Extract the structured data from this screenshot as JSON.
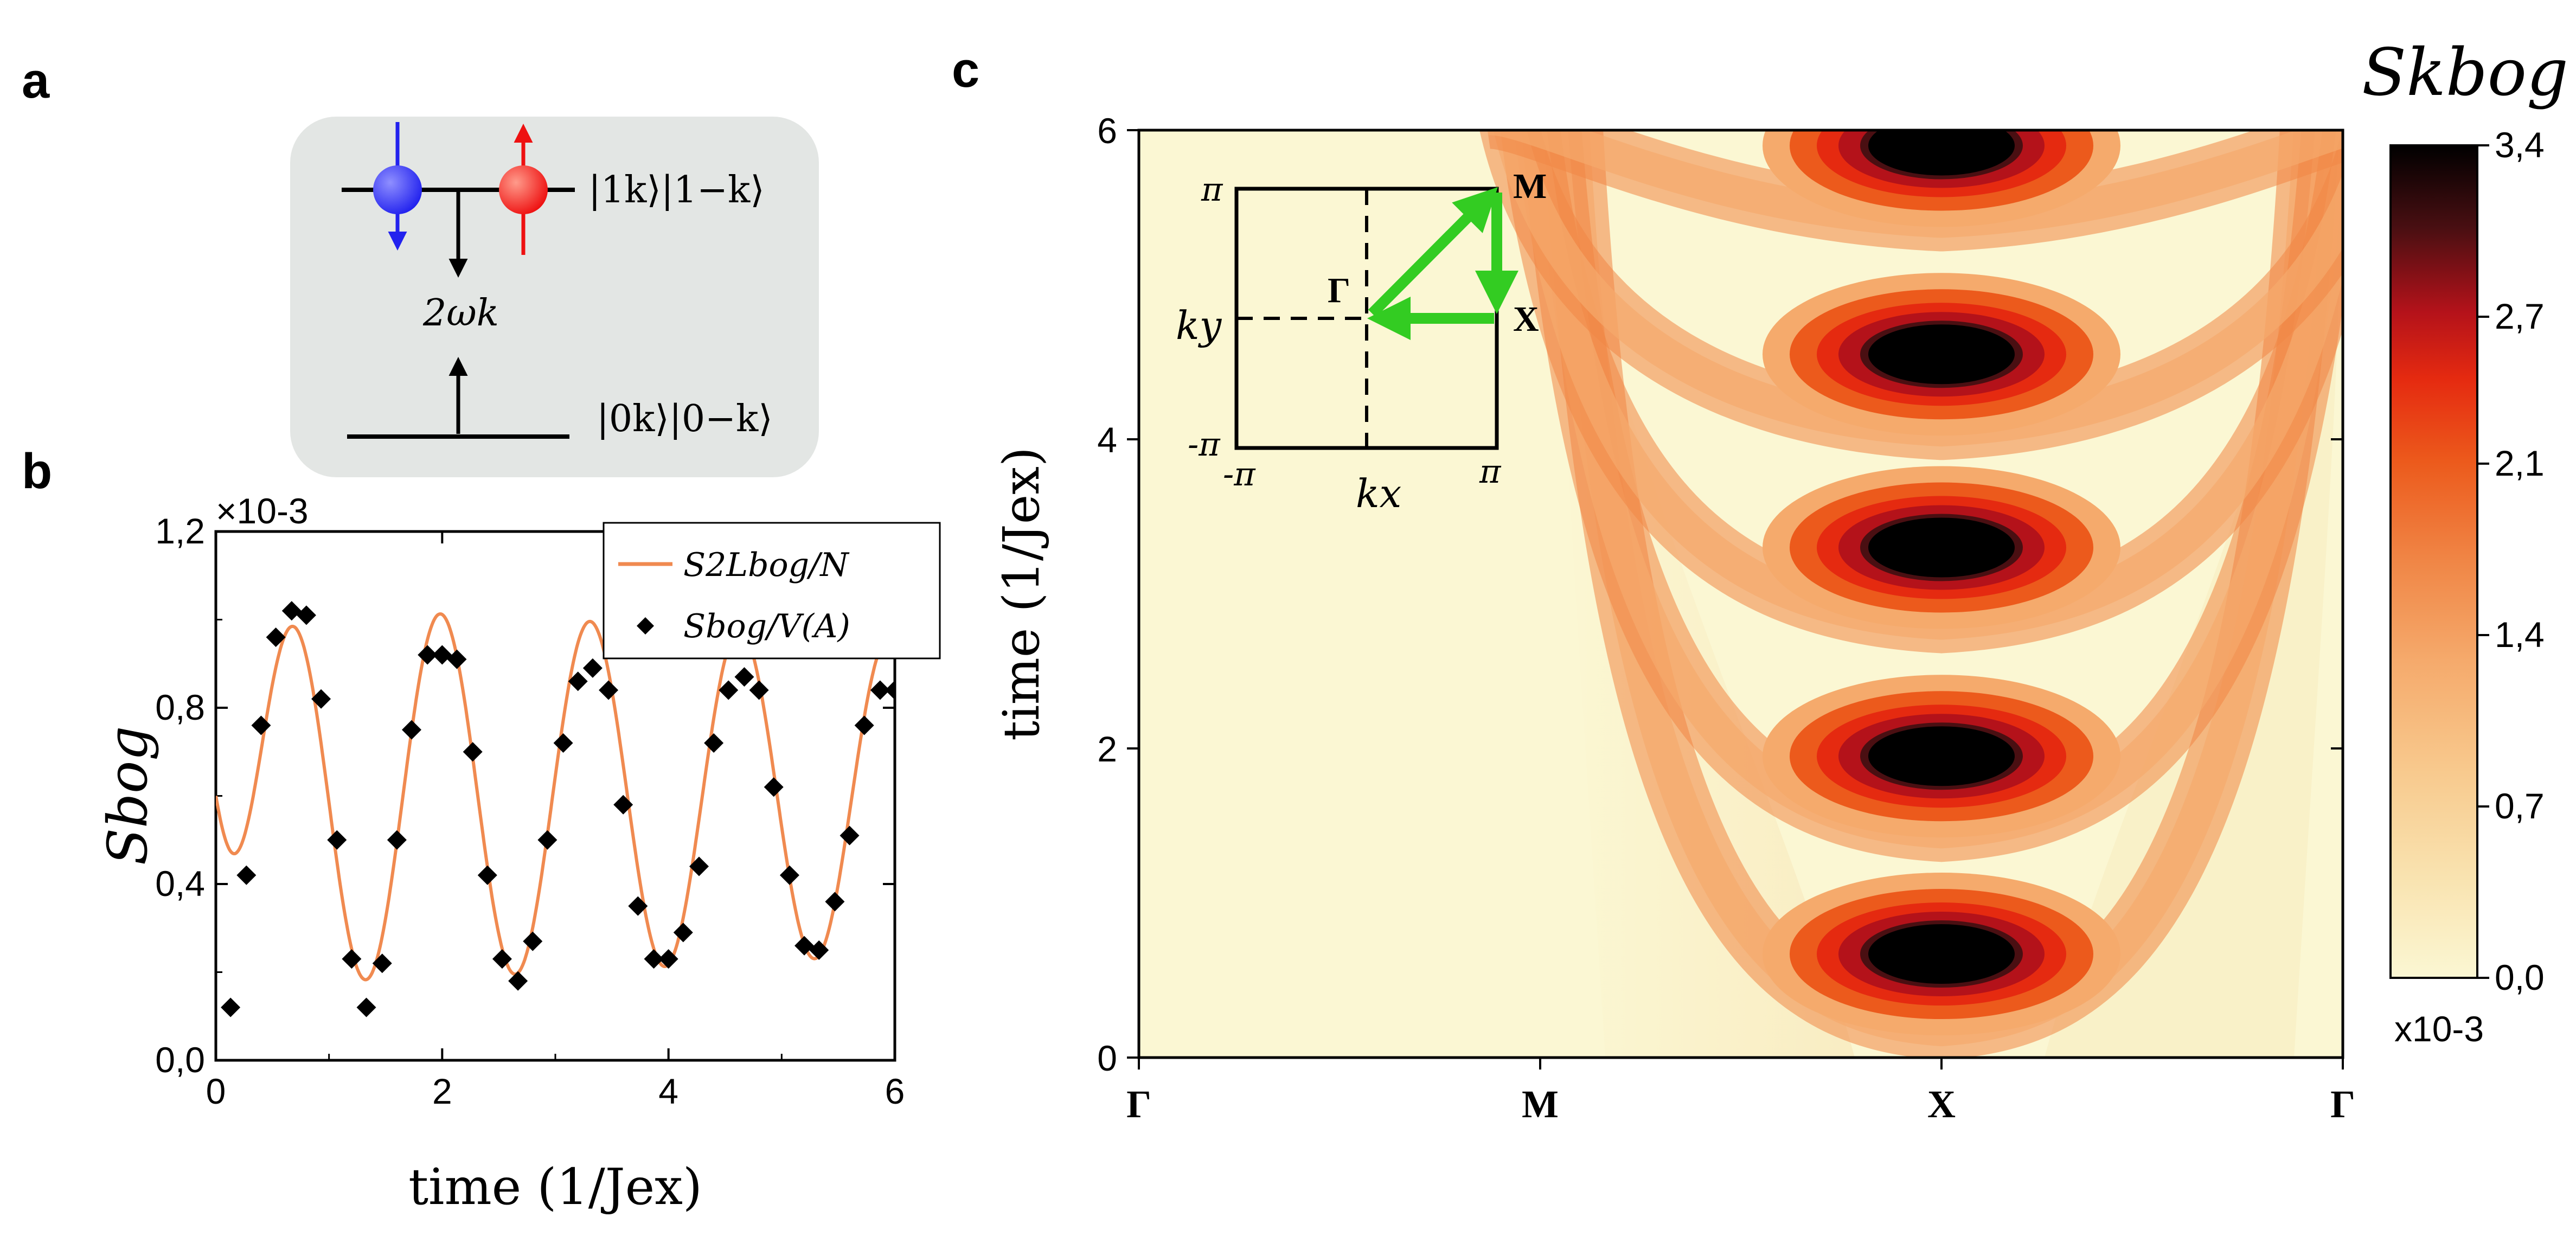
{
  "panels": {
    "a": "a",
    "b": "b",
    "c": "c"
  },
  "panel_a": {
    "upper_level": "|1k⟩|1−k⟩",
    "lower_level": "|0k⟩|0−k⟩",
    "gap": "2ωk",
    "colors": {
      "box": "#e3e6e4",
      "spin_down": "#2222ee",
      "spin_up": "#ee1111"
    }
  },
  "chart_data": [
    {
      "id": "b",
      "type": "line",
      "xlabel": "time (1/Jex)",
      "ylabel": "Sbog",
      "xlim": [
        0,
        6
      ],
      "ylim": [
        0,
        1.2
      ],
      "y_multiplier": "×10-3",
      "xticks": [
        "0",
        "2",
        "4",
        "6"
      ],
      "yticks": [
        "0,0",
        "0,4",
        "0,8",
        "1,2"
      ],
      "legend_position": "top-right",
      "series": [
        {
          "name": "S2Lbog/N",
          "kind": "line",
          "color": "#f08a50",
          "model": {
            "mean": 0.6,
            "amplitude": [
              0.44,
              0.36
            ],
            "omega": 4.75,
            "phase": 0.3
          }
        },
        {
          "name": "Sbog/V(A)",
          "kind": "scatter",
          "marker": "diamond",
          "color": "#000000",
          "x": [
            0.13,
            0.27,
            0.4,
            0.53,
            0.67,
            0.8,
            0.93,
            1.07,
            1.2,
            1.33,
            1.47,
            1.6,
            1.73,
            1.87,
            2.0,
            2.13,
            2.27,
            2.4,
            2.53,
            2.67,
            2.8,
            2.93,
            3.07,
            3.2,
            3.33,
            3.47,
            3.6,
            3.73,
            3.87,
            4.0,
            4.13,
            4.27,
            4.4,
            4.53,
            4.67,
            4.8,
            4.93,
            5.07,
            5.2,
            5.33,
            5.47,
            5.6,
            5.73,
            5.87,
            6.0
          ],
          "y": [
            0.12,
            0.42,
            0.76,
            0.96,
            1.02,
            1.01,
            0.82,
            0.5,
            0.23,
            0.12,
            0.22,
            0.5,
            0.75,
            0.92,
            0.92,
            0.91,
            0.7,
            0.42,
            0.23,
            0.18,
            0.27,
            0.5,
            0.72,
            0.86,
            0.89,
            0.84,
            0.58,
            0.35,
            0.23,
            0.23,
            0.29,
            0.44,
            0.72,
            0.84,
            0.87,
            0.84,
            0.62,
            0.42,
            0.26,
            0.25,
            0.36,
            0.51,
            0.76,
            0.84,
            0.84
          ]
        }
      ]
    },
    {
      "id": "c",
      "type": "heatmap",
      "ylabel": "time (1/Jex)",
      "xticks": [
        "Γ",
        "M",
        "X",
        "Γ"
      ],
      "yticks": [
        "0",
        "2",
        "4",
        "6"
      ],
      "ylim": [
        0,
        6
      ],
      "colorbar": {
        "title": "Skbog",
        "ticks": [
          "0,0",
          "0,7",
          "1,4",
          "2,1",
          "2,7",
          "3,4"
        ],
        "range": [
          0,
          3.4
        ],
        "multiplier": "x10-3",
        "colors": [
          "#fbf7d3",
          "#f9e3b0",
          "#f8c98d",
          "#f5aa6c",
          "#f08646",
          "#ec5a1c",
          "#e52a10",
          "#b4121a",
          "#4a0f12",
          "#000000"
        ]
      },
      "bright_lobe_times": [
        0.67,
        1.95,
        3.3,
        4.55,
        5.9
      ],
      "inset": {
        "path": [
          "Γ",
          "M",
          "X",
          "Γ"
        ],
        "axis_labels": {
          "x": "kx",
          "y": "ky"
        },
        "tick_labels": {
          "top": "π",
          "bottom": "-π",
          "left": "-π",
          "right": "π"
        },
        "arrow_color": "#33cc22"
      }
    }
  ]
}
